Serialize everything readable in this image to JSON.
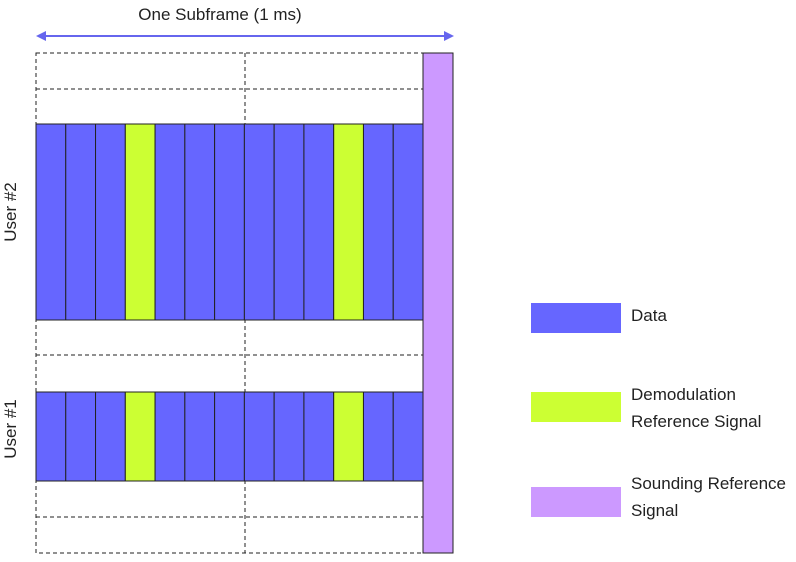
{
  "diagram": {
    "title": "One Subframe (1 ms)",
    "users": [
      {
        "label": "User #2"
      },
      {
        "label": "User #1"
      }
    ],
    "symbols_per_user": 14,
    "dmrs_symbol_indices": [
      3,
      10
    ],
    "srs_symbol_index": 13
  },
  "legend": {
    "items": [
      {
        "key": "data",
        "lines": [
          "Data"
        ],
        "color": "#6666ff"
      },
      {
        "key": "dmrs",
        "lines": [
          "Demodulation",
          "Reference Signal"
        ],
        "color": "#ccff33"
      },
      {
        "key": "srs",
        "lines": [
          "Sounding Reference",
          "Signal"
        ],
        "color": "#cc99ff"
      }
    ]
  },
  "colors": {
    "data": "#6666ff",
    "dmrs": "#ccff33",
    "srs": "#cc99ff",
    "arrow": "#6666ee"
  }
}
